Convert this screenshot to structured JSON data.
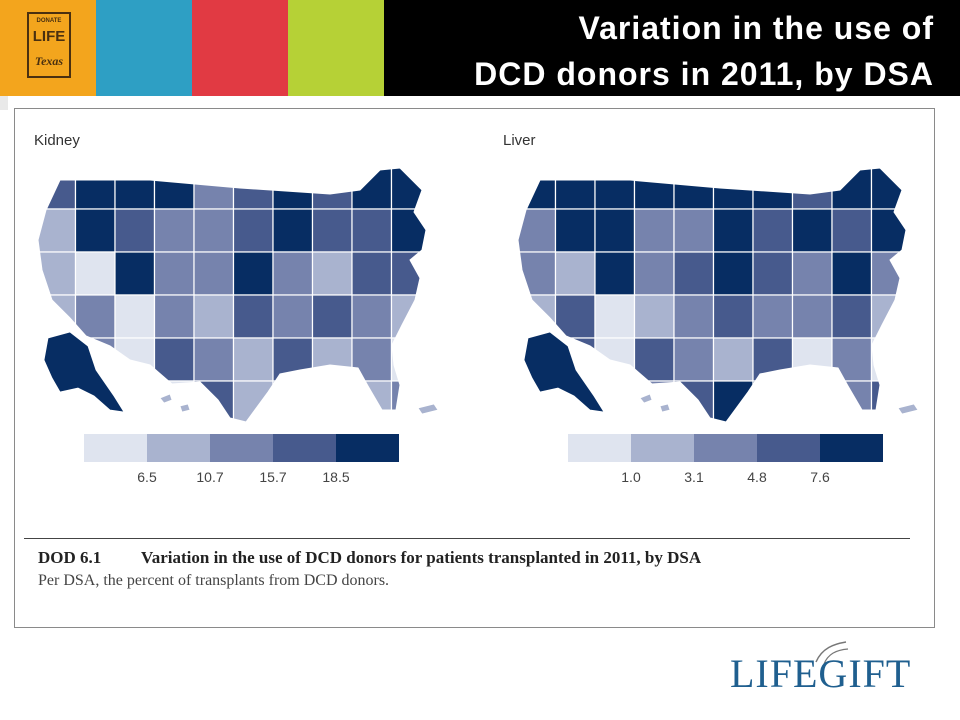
{
  "header": {
    "title_line1": "Variation in the use of",
    "title_line2": "DCD donors in 2011, by DSA",
    "stripe_colors": [
      "#f3a51d",
      "#2e9fc4",
      "#e13a43",
      "#b6d136",
      "#000000"
    ],
    "logo": {
      "top": "DONATE",
      "mid": "LIFE",
      "bottom": "Texas"
    }
  },
  "chart_data": [
    {
      "type": "choropleth",
      "title": "Kidney",
      "legend": {
        "colors": [
          "#dfe4ef",
          "#a9b3cf",
          "#7683ad",
          "#475a8d",
          "#072d63"
        ],
        "breaks": [
          "6.5",
          "10.7",
          "15.7",
          "18.5"
        ]
      }
    },
    {
      "type": "choropleth",
      "title": "Liver",
      "legend": {
        "colors": [
          "#dfe4ef",
          "#a9b3cf",
          "#7683ad",
          "#475a8d",
          "#072d63"
        ],
        "breaks": [
          "1.0",
          "3.1",
          "4.8",
          "7.6"
        ]
      }
    }
  ],
  "caption": {
    "id": "DOD 6.1",
    "title": "Variation in the use of DCD donors for patients transplanted in 2011, by DSA",
    "subtitle": "Per DSA, the percent of transplants from DCD donors."
  },
  "footer_logo": "LIFEGIFT"
}
